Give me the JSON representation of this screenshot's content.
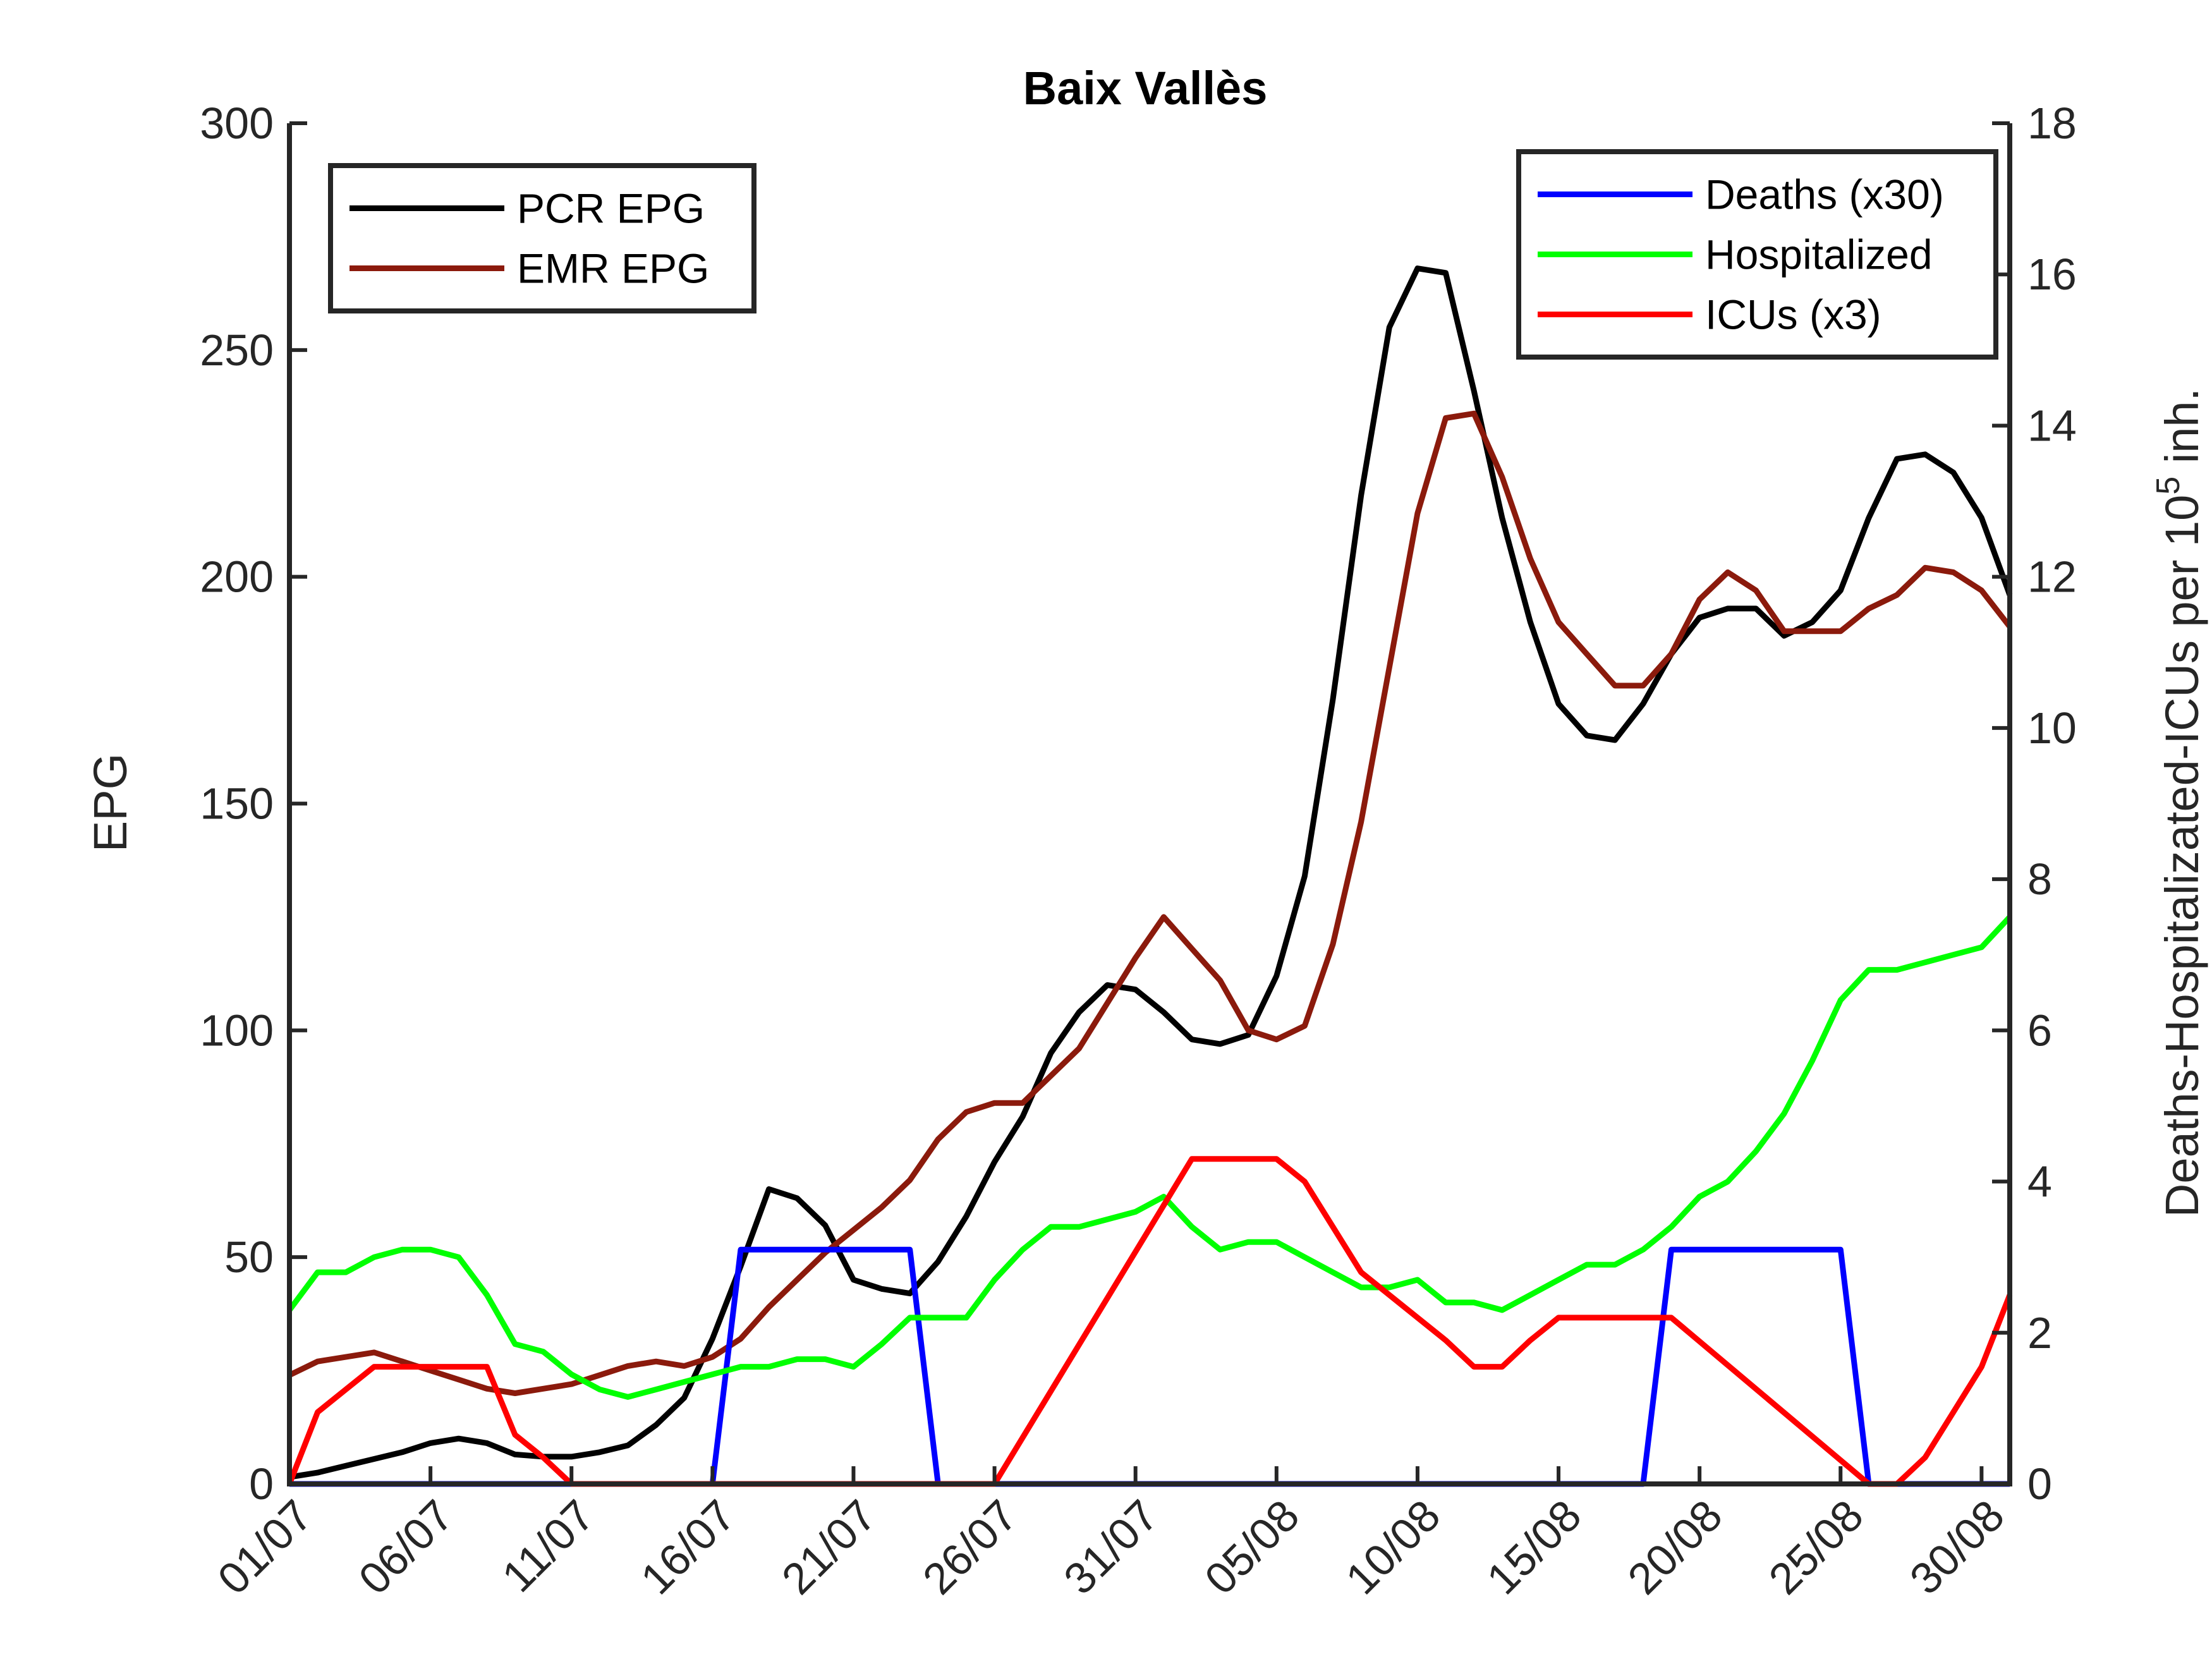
{
  "chart_data": {
    "type": "line",
    "title": "Baix Vallès",
    "ylabel_left": "EPG",
    "ylabel_right_main": "Deaths-Hospitalizated-ICUs per 10",
    "ylabel_right_sup": "5",
    "ylabel_right_tail": " inh.",
    "xtick_labels": [
      "01/07",
      "06/07",
      "11/07",
      "16/07",
      "21/07",
      "26/07",
      "31/07",
      "05/08",
      "10/08",
      "15/08",
      "20/08",
      "25/08",
      "30/08"
    ],
    "ylim_left": [
      0,
      300
    ],
    "yticks_left": [
      0,
      50,
      100,
      150,
      200,
      250,
      300
    ],
    "ylim_right": [
      0,
      18
    ],
    "yticks_right": [
      0,
      2,
      4,
      6,
      8,
      10,
      12,
      14,
      16,
      18
    ],
    "x_range": [
      0,
      61
    ],
    "x_tick_step": 5,
    "grid": false,
    "legends": {
      "left": {
        "placement": "top-left",
        "items": [
          "PCR EPG",
          "EMR EPG"
        ]
      },
      "right": {
        "placement": "top-right",
        "items": [
          "Deaths (x30)",
          "Hospitalized",
          "ICUs (x3)"
        ]
      }
    },
    "series": [
      {
        "name": "PCR EPG",
        "axis": "left",
        "color": "#000000",
        "points": [
          [
            0,
            1.5
          ],
          [
            1,
            2.5
          ],
          [
            2,
            4
          ],
          [
            3,
            5.5
          ],
          [
            4,
            7
          ],
          [
            5,
            9
          ],
          [
            6,
            10
          ],
          [
            7,
            9
          ],
          [
            8,
            6.5
          ],
          [
            9,
            6
          ],
          [
            10,
            6
          ],
          [
            11,
            7
          ],
          [
            12,
            8.5
          ],
          [
            13,
            13
          ],
          [
            14,
            19
          ],
          [
            15,
            32
          ],
          [
            16,
            48
          ],
          [
            17,
            65
          ],
          [
            18,
            63
          ],
          [
            19,
            57
          ],
          [
            20,
            45
          ],
          [
            21,
            43
          ],
          [
            22,
            42
          ],
          [
            23,
            49
          ],
          [
            24,
            59
          ],
          [
            25,
            71
          ],
          [
            26,
            81
          ],
          [
            27,
            95
          ],
          [
            28,
            104
          ],
          [
            29,
            110
          ],
          [
            30,
            109
          ],
          [
            31,
            104
          ],
          [
            32,
            98
          ],
          [
            33,
            97
          ],
          [
            34,
            99
          ],
          [
            35,
            112
          ],
          [
            36,
            134
          ],
          [
            37,
            173
          ],
          [
            38,
            218
          ],
          [
            39,
            255
          ],
          [
            40,
            268
          ],
          [
            41,
            267
          ],
          [
            42,
            241
          ],
          [
            43,
            213
          ],
          [
            44,
            190
          ],
          [
            45,
            172
          ],
          [
            46,
            165
          ],
          [
            47,
            164
          ],
          [
            48,
            172
          ],
          [
            49,
            183
          ],
          [
            50,
            191
          ],
          [
            51,
            193
          ],
          [
            52,
            193
          ],
          [
            53,
            187
          ],
          [
            54,
            190
          ],
          [
            55,
            197
          ],
          [
            56,
            213
          ],
          [
            57,
            226
          ],
          [
            58,
            227
          ],
          [
            59,
            223
          ],
          [
            60,
            213
          ],
          [
            61,
            196
          ]
        ]
      },
      {
        "name": "EMR EPG",
        "axis": "left",
        "color": "#8b1a0c",
        "points": [
          [
            0,
            24
          ],
          [
            1,
            27
          ],
          [
            2,
            28
          ],
          [
            3,
            29
          ],
          [
            4,
            27
          ],
          [
            5,
            25
          ],
          [
            6,
            23
          ],
          [
            7,
            21
          ],
          [
            8,
            20
          ],
          [
            9,
            21
          ],
          [
            10,
            22
          ],
          [
            11,
            24
          ],
          [
            12,
            26
          ],
          [
            13,
            27
          ],
          [
            14,
            26
          ],
          [
            15,
            28
          ],
          [
            16,
            32
          ],
          [
            17,
            39
          ],
          [
            18,
            45
          ],
          [
            19,
            51
          ],
          [
            20,
            56
          ],
          [
            21,
            61
          ],
          [
            22,
            67
          ],
          [
            23,
            76
          ],
          [
            24,
            82
          ],
          [
            25,
            84
          ],
          [
            26,
            84
          ],
          [
            27,
            90
          ],
          [
            28,
            96
          ],
          [
            29,
            106
          ],
          [
            30,
            116
          ],
          [
            31,
            125
          ],
          [
            32,
            118
          ],
          [
            33,
            111
          ],
          [
            34,
            100
          ],
          [
            35,
            98
          ],
          [
            36,
            101
          ],
          [
            37,
            119
          ],
          [
            38,
            146
          ],
          [
            39,
            180
          ],
          [
            40,
            214
          ],
          [
            41,
            235
          ],
          [
            42,
            236
          ],
          [
            43,
            222
          ],
          [
            44,
            204
          ],
          [
            45,
            190
          ],
          [
            46,
            183
          ],
          [
            47,
            176
          ],
          [
            48,
            176
          ],
          [
            49,
            183
          ],
          [
            50,
            195
          ],
          [
            51,
            201
          ],
          [
            52,
            197
          ],
          [
            53,
            188
          ],
          [
            54,
            188
          ],
          [
            55,
            188
          ],
          [
            56,
            193
          ],
          [
            57,
            196
          ],
          [
            58,
            202
          ],
          [
            59,
            201
          ],
          [
            60,
            197
          ],
          [
            61,
            189
          ]
        ]
      },
      {
        "name": "Deaths (x30)",
        "axis": "right",
        "color": "#0000ff",
        "points": [
          [
            0,
            0
          ],
          [
            15,
            0
          ],
          [
            16,
            3.1
          ],
          [
            22,
            3.1
          ],
          [
            23,
            0
          ],
          [
            48,
            0
          ],
          [
            49,
            3.1
          ],
          [
            55,
            3.1
          ],
          [
            56,
            0
          ],
          [
            61,
            0
          ]
        ]
      },
      {
        "name": "Hospitalized",
        "axis": "right",
        "color": "#00ff00",
        "points": [
          [
            0,
            2.3
          ],
          [
            1,
            2.8
          ],
          [
            2,
            2.8
          ],
          [
            3,
            3
          ],
          [
            4,
            3.1
          ],
          [
            5,
            3.1
          ],
          [
            6,
            3
          ],
          [
            7,
            2.5
          ],
          [
            8,
            1.85
          ],
          [
            9,
            1.75
          ],
          [
            10,
            1.45
          ],
          [
            11,
            1.25
          ],
          [
            12,
            1.15
          ],
          [
            13,
            1.25
          ],
          [
            14,
            1.35
          ],
          [
            15,
            1.45
          ],
          [
            16,
            1.55
          ],
          [
            17,
            1.55
          ],
          [
            18,
            1.65
          ],
          [
            19,
            1.65
          ],
          [
            20,
            1.55
          ],
          [
            21,
            1.85
          ],
          [
            22,
            2.2
          ],
          [
            23,
            2.2
          ],
          [
            24,
            2.2
          ],
          [
            25,
            2.7
          ],
          [
            26,
            3.1
          ],
          [
            27,
            3.4
          ],
          [
            28,
            3.4
          ],
          [
            29,
            3.5
          ],
          [
            30,
            3.6
          ],
          [
            31,
            3.8
          ],
          [
            32,
            3.4
          ],
          [
            33,
            3.1
          ],
          [
            34,
            3.2
          ],
          [
            35,
            3.2
          ],
          [
            36,
            3
          ],
          [
            37,
            2.8
          ],
          [
            38,
            2.6
          ],
          [
            39,
            2.6
          ],
          [
            40,
            2.7
          ],
          [
            41,
            2.4
          ],
          [
            42,
            2.4
          ],
          [
            43,
            2.3
          ],
          [
            44,
            2.5
          ],
          [
            45,
            2.7
          ],
          [
            46,
            2.9
          ],
          [
            47,
            2.9
          ],
          [
            48,
            3.1
          ],
          [
            49,
            3.4
          ],
          [
            50,
            3.8
          ],
          [
            51,
            4
          ],
          [
            52,
            4.4
          ],
          [
            53,
            4.9
          ],
          [
            54,
            5.6
          ],
          [
            55,
            6.4
          ],
          [
            56,
            6.8
          ],
          [
            57,
            6.8
          ],
          [
            58,
            6.9
          ],
          [
            59,
            7
          ],
          [
            60,
            7.1
          ],
          [
            61,
            7.5
          ]
        ]
      },
      {
        "name": "ICUs (x3)",
        "axis": "right",
        "color": "#ff0000",
        "points": [
          [
            0,
            0
          ],
          [
            1,
            0.95
          ],
          [
            2,
            1.25
          ],
          [
            3,
            1.55
          ],
          [
            4,
            1.55
          ],
          [
            5,
            1.55
          ],
          [
            6,
            1.55
          ],
          [
            7,
            1.55
          ],
          [
            8,
            0.65
          ],
          [
            9,
            0.35
          ],
          [
            10,
            0
          ],
          [
            15,
            0
          ],
          [
            25,
            0
          ],
          [
            32,
            4.3
          ],
          [
            35,
            4.3
          ],
          [
            36,
            4
          ],
          [
            37,
            3.4
          ],
          [
            38,
            2.8
          ],
          [
            39,
            2.5
          ],
          [
            40,
            2.2
          ],
          [
            41,
            1.9
          ],
          [
            42,
            1.55
          ],
          [
            43,
            1.55
          ],
          [
            44,
            1.9
          ],
          [
            45,
            2.2
          ],
          [
            46,
            2.2
          ],
          [
            47,
            2.2
          ],
          [
            48,
            2.2
          ],
          [
            49,
            2.2
          ],
          [
            56,
            0
          ],
          [
            57,
            0
          ],
          [
            58,
            0.35
          ],
          [
            59,
            0.95
          ],
          [
            60,
            1.55
          ],
          [
            61,
            2.5
          ]
        ]
      }
    ]
  }
}
